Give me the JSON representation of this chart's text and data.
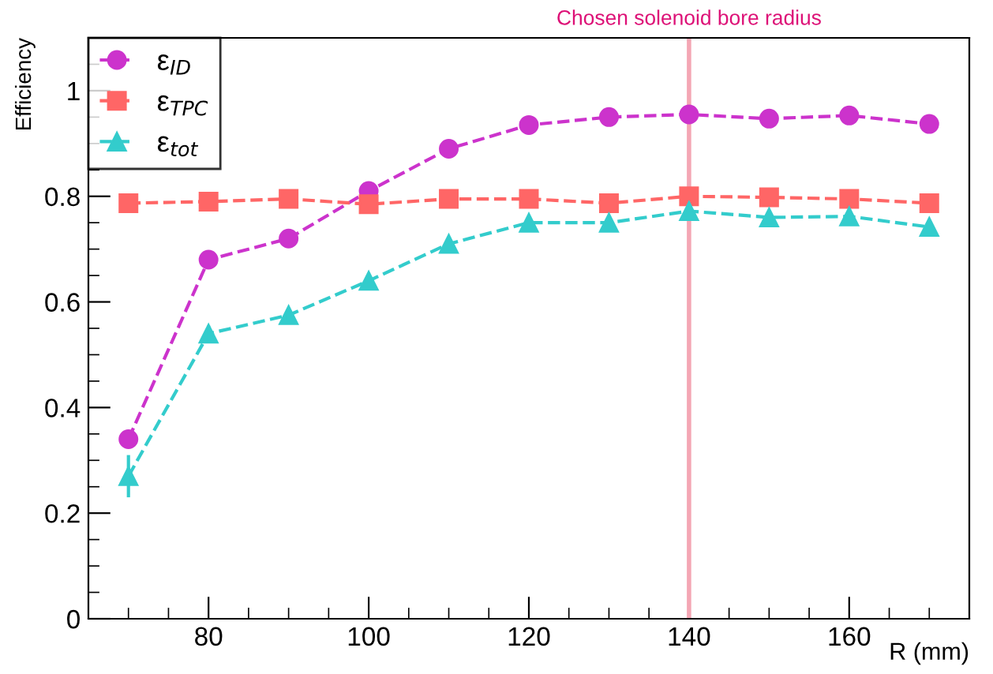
{
  "chart_data": {
    "type": "line",
    "xlabel": "R (mm)",
    "ylabel": "Efficiency",
    "x": [
      70,
      80,
      90,
      100,
      110,
      120,
      130,
      140,
      150,
      160,
      170
    ],
    "series": [
      {
        "name": "ε$_{ID}$",
        "color": "#cc33cc",
        "marker": "circle",
        "values": [
          0.34,
          0.68,
          0.72,
          0.81,
          0.89,
          0.935,
          0.95,
          0.955,
          0.947,
          0.953,
          0.937
        ]
      },
      {
        "name": "ε$_{TPC}$",
        "color": "#ff6666",
        "marker": "square",
        "values": [
          0.787,
          0.79,
          0.795,
          0.785,
          0.795,
          0.795,
          0.787,
          0.8,
          0.798,
          0.795,
          0.787
        ]
      },
      {
        "name": "ε$_{tot}$",
        "color": "#33cccc",
        "marker": "triangle",
        "values": [
          0.27,
          0.54,
          0.575,
          0.64,
          0.71,
          0.75,
          0.75,
          0.772,
          0.76,
          0.762,
          0.742
        ],
        "errors": [
          0.04,
          0.015,
          0.01,
          null,
          null,
          null,
          null,
          null,
          null,
          null,
          null
        ]
      }
    ],
    "line_style": "dashed",
    "xlim": [
      65,
      175
    ],
    "xticks": [
      80,
      100,
      120,
      140,
      160
    ],
    "ylim": [
      0,
      1.1
    ],
    "yticks": [
      0,
      0.2,
      0.4,
      0.6,
      0.8,
      1
    ],
    "ref_lines": [
      {
        "axis": "x",
        "value": 140,
        "label": "Chosen solenoid bore radius",
        "color": "#f4a6b4"
      }
    ],
    "grid": false,
    "legend": "top left"
  }
}
